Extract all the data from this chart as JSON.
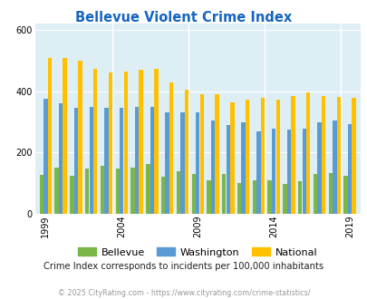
{
  "title": "Bellevue Violent Crime Index",
  "years": [
    1999,
    2000,
    2001,
    2002,
    2003,
    2004,
    2005,
    2006,
    2007,
    2008,
    2009,
    2010,
    2011,
    2012,
    2013,
    2014,
    2015,
    2016,
    2017,
    2018,
    2019
  ],
  "bellevue": [
    128,
    150,
    125,
    148,
    158,
    148,
    150,
    162,
    120,
    138,
    130,
    110,
    130,
    100,
    108,
    110,
    98,
    105,
    130,
    133,
    125
  ],
  "washington": [
    375,
    360,
    345,
    350,
    345,
    345,
    350,
    350,
    330,
    332,
    330,
    305,
    290,
    298,
    268,
    278,
    275,
    278,
    298,
    305,
    293
  ],
  "national": [
    508,
    508,
    500,
    473,
    460,
    463,
    469,
    473,
    430,
    405,
    390,
    390,
    365,
    372,
    380,
    373,
    385,
    395,
    385,
    383,
    380
  ],
  "bellevue_color": "#7ab648",
  "washington_color": "#5b9bd5",
  "national_color": "#ffc000",
  "bg_color": "#deeef5",
  "ylim_max": 620,
  "yticks": [
    0,
    200,
    400,
    600
  ],
  "xtick_years": [
    1999,
    2004,
    2009,
    2014,
    2019
  ],
  "subtitle": "Crime Index corresponds to incidents per 100,000 inhabitants",
  "footer": "© 2025 CityRating.com - https://www.cityrating.com/crime-statistics/",
  "title_color": "#1565c0",
  "subtitle_color": "#222222",
  "footer_color": "#999999"
}
